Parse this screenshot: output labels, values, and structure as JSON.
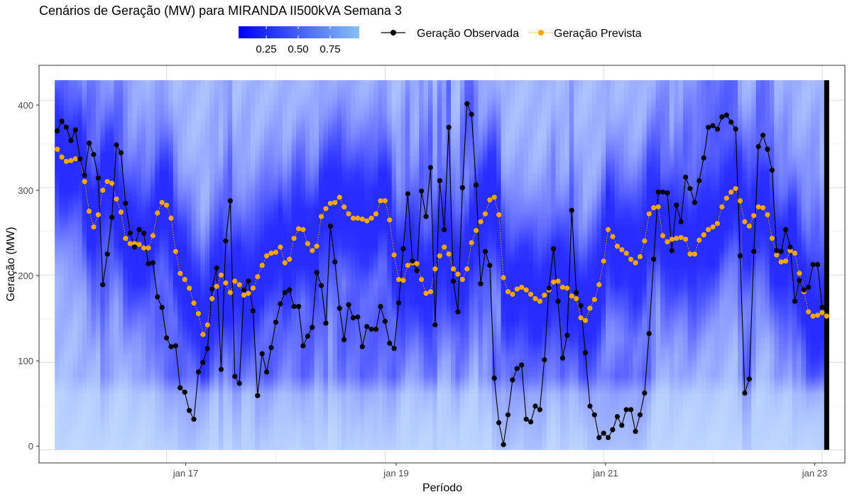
{
  "chart_data": {
    "type": "line",
    "title": "Cenários de Geração (MW) para MIRANDA II500kVA Semana 3",
    "xlabel": "Período",
    "ylabel": "Geração (MW)",
    "x_ticks": [
      "jan 17",
      "jan 19",
      "jan 21",
      "jan 23"
    ],
    "y_ticks": [
      "0",
      "100",
      "200",
      "300",
      "400"
    ],
    "xlim": [
      "2022-01-15T20:00",
      "2022-01-23T05:00"
    ],
    "ylim": [
      -15,
      440
    ],
    "scenario_band": [
      0,
      423
    ],
    "colorbar": {
      "labels": [
        "0.25",
        "0.50",
        "0.75"
      ],
      "low_color": "#0000ff",
      "high_color": "#87c0f0"
    },
    "legend_placement": "top",
    "series": [
      {
        "name": "Geração Observada",
        "color": "#000000",
        "x_start": "2022-01-16T00:00",
        "x_step_hours": 1,
        "values": [
          365,
          376,
          369,
          354,
          366,
          333,
          314,
          351,
          338,
          311,
          189,
          224,
          266,
          349,
          340,
          282,
          248,
          232,
          252,
          248,
          213,
          214,
          175,
          163,
          128,
          118,
          119,
          71,
          66,
          45,
          35,
          89,
          100,
          116,
          184,
          208,
          92,
          239,
          285,
          84,
          76,
          183,
          193,
          159,
          62,
          110,
          89,
          117,
          146,
          167,
          180,
          183,
          164,
          164,
          119,
          130,
          140,
          203,
          188,
          145,
          256,
          215,
          162,
          126,
          166,
          151,
          152,
          118,
          141,
          138,
          138,
          164,
          147,
          122,
          116,
          168,
          230,
          293,
          216,
          205,
          296,
          267,
          323,
          143,
          308,
          252,
          369,
          193,
          158,
          300,
          396,
          384,
          303,
          190,
          227,
          211,
          82,
          31,
          6,
          40,
          80,
          93,
          97,
          35,
          32,
          50,
          46,
          103,
          185,
          230,
          170,
          105,
          131,
          274,
          180,
          165,
          111,
          50,
          40,
          14,
          19,
          14,
          23,
          38,
          28,
          46,
          46,
          21,
          40,
          65,
          133,
          218,
          295,
          295,
          294,
          228,
          280,
          261,
          312,
          299,
          283,
          308,
          334,
          369,
          371,
          367,
          381,
          383,
          375,
          367,
          222,
          65,
          81,
          227,
          347,
          360,
          344,
          320,
          228,
          227,
          252,
          232,
          170,
          194,
          183,
          186,
          212,
          212,
          163
        ]
      },
      {
        "name": "Geração Prevista",
        "color": "#ffa500",
        "x_start": "2022-01-16T00:00",
        "x_step_hours": 1,
        "values": [
          344,
          335,
          330,
          331,
          333,
          333,
          307,
          273,
          255,
          269,
          297,
          307,
          305,
          287,
          272,
          242,
          236,
          236,
          235,
          231,
          231,
          245,
          271,
          283,
          280,
          265,
          227,
          202,
          195,
          185,
          168,
          156,
          132,
          143,
          173,
          187,
          200,
          191,
          180,
          193,
          189,
          177,
          179,
          185,
          198,
          211,
          222,
          225,
          226,
          232,
          214,
          218,
          242,
          253,
          252,
          236,
          228,
          233,
          267,
          276,
          282,
          283,
          289,
          278,
          270,
          265,
          265,
          264,
          262,
          265,
          270,
          285,
          285,
          263,
          223,
          195,
          194,
          211,
          214,
          213,
          195,
          179,
          181,
          207,
          222,
          232,
          224,
          207,
          201,
          195,
          207,
          237,
          251,
          261,
          270,
          286,
          289,
          269,
          197,
          181,
          178,
          184,
          186,
          183,
          178,
          173,
          170,
          177,
          183,
          192,
          193,
          186,
          185,
          176,
          173,
          151,
          148,
          162,
          172,
          189,
          216,
          252,
          244,
          233,
          229,
          225,
          218,
          214,
          221,
          239,
          270,
          277,
          278,
          245,
          238,
          241,
          242,
          243,
          241,
          224,
          224,
          240,
          246,
          252,
          255,
          259,
          278,
          288,
          295,
          299,
          285,
          261,
          256,
          268,
          278,
          277,
          269,
          242,
          223,
          215,
          216,
          228,
          225,
          202,
          181,
          158,
          153,
          154,
          157,
          153
        ]
      }
    ]
  }
}
